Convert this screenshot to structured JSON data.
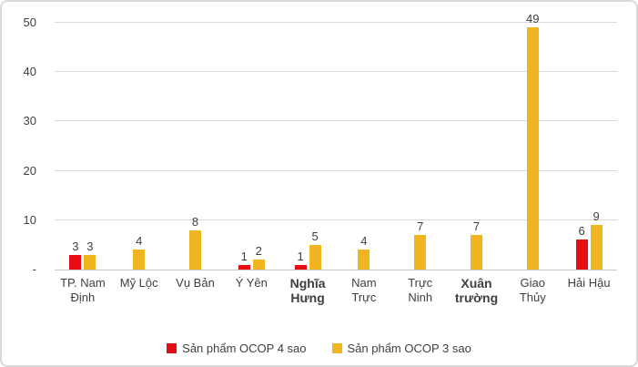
{
  "chart_data": {
    "type": "bar",
    "title": "",
    "xlabel": "",
    "ylabel": "",
    "categories": [
      "TP. Nam Định",
      "Mỹ Lộc",
      "Vụ Bản",
      "Ý Yên",
      "Nghĩa Hưng",
      "Nam Trực",
      "Trực Ninh",
      "Xuân trường",
      "Giao Thủy",
      "Hải Hậu"
    ],
    "x_tick_display": [
      "TP. Nam\nĐịnh",
      "Mỹ Lộc",
      "Vụ Bản",
      "Ý Yên",
      "Nghĩa\nHưng",
      "Nam\nTrực",
      "Trực\nNinh",
      "Xuân\ntrường",
      "Giao\nThủy",
      "Hải Hậu"
    ],
    "emphasized_tick_indexes": [
      4,
      7
    ],
    "series": [
      {
        "name": "Sản phẩm OCOP 4 sao",
        "color": "#E80C15",
        "values": [
          3,
          0,
          0,
          1,
          1,
          0,
          0,
          0,
          0,
          6
        ]
      },
      {
        "name": "Sản phẩm OCOP 3 sao",
        "color": "#F0B51F",
        "values": [
          3,
          4,
          8,
          2,
          5,
          4,
          7,
          7,
          49,
          9
        ]
      }
    ],
    "ylim": [
      0,
      50
    ],
    "y_ticks": [
      {
        "value": 0,
        "label": "-"
      },
      {
        "value": 10,
        "label": "10"
      },
      {
        "value": 20,
        "label": "20"
      },
      {
        "value": 30,
        "label": "30"
      },
      {
        "value": 40,
        "label": "40"
      },
      {
        "value": 50,
        "label": "50"
      }
    ],
    "grid": true,
    "legend_position": "bottom",
    "data_labels": true
  },
  "style": {
    "grid_color": "#D9D9D9",
    "baseline_color": "#C9C9C9",
    "text_color": "#3F3F3F",
    "border_color": "#D9D9D9",
    "background": "#FFFFFF"
  }
}
